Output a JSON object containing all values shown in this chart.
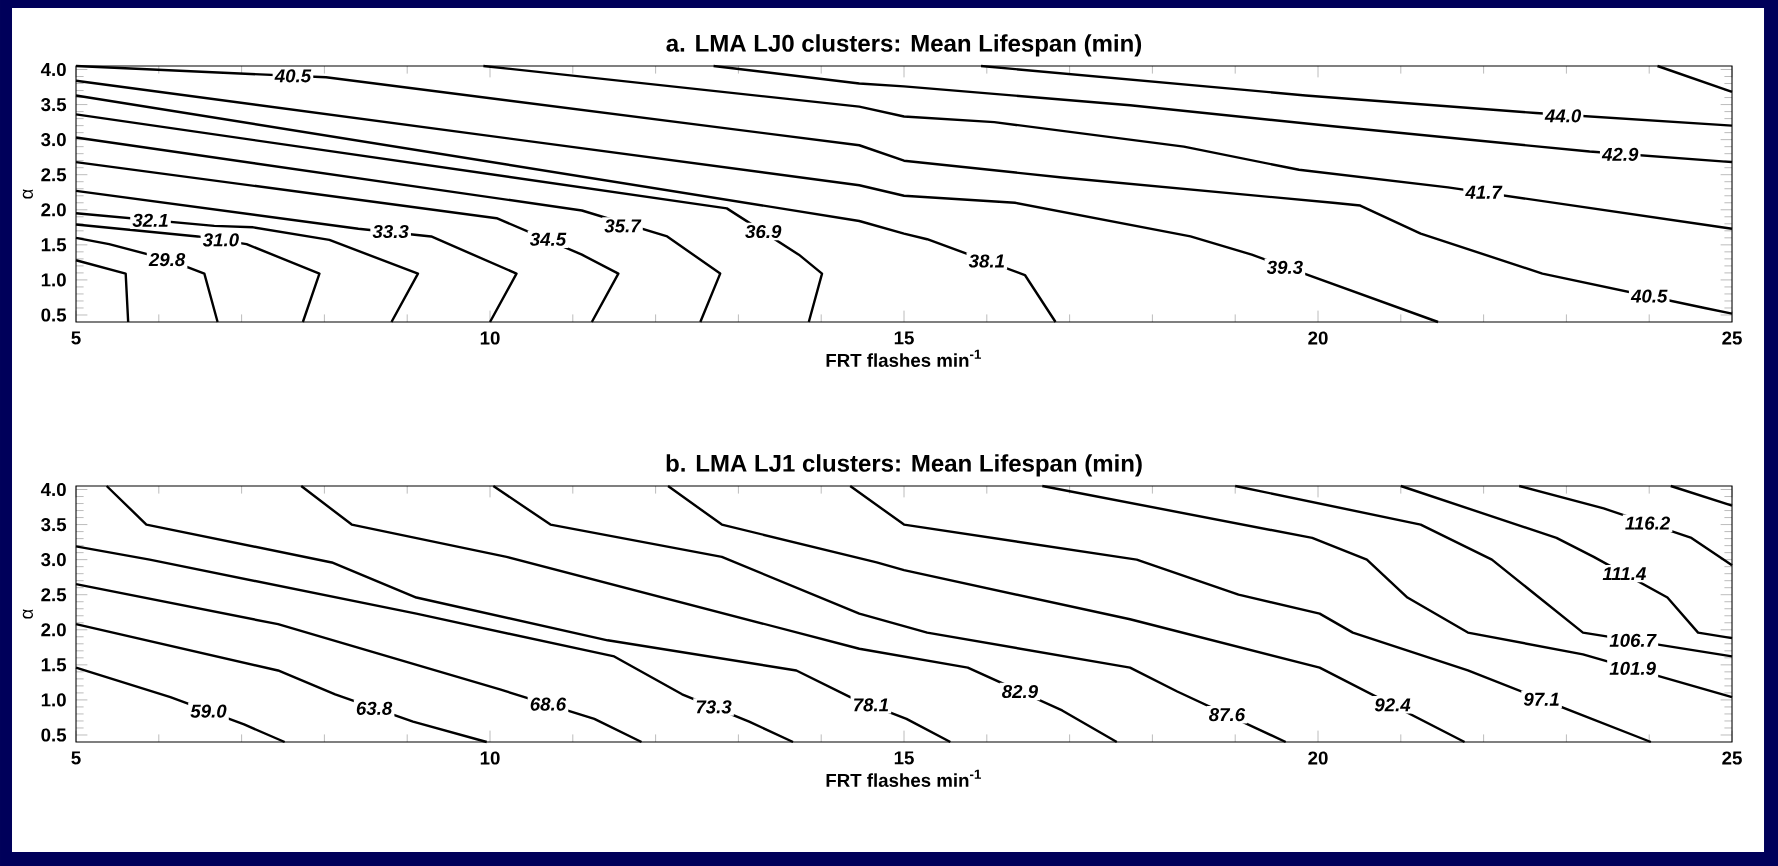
{
  "chart_data": [
    {
      "type": "line",
      "title": "a. LMA LJ0 clusters: Mean Lifespan (min)",
      "xlabel": "FRT flashes min$^{-1}$",
      "ylabel": "α",
      "xlim": [
        5,
        25
      ],
      "xticks": [
        5,
        10,
        15,
        20,
        25
      ],
      "ylim": [
        0.4,
        4.05
      ],
      "yticks": [
        {
          "value": 0.5,
          "label": "0.5"
        },
        {
          "value": 1.0,
          "label": "1.0"
        },
        {
          "value": 1.5,
          "label": "1.5"
        },
        {
          "value": 2.0,
          "label": "2.0"
        },
        {
          "value": 2.5,
          "label": "2.5"
        },
        {
          "value": 3.0,
          "label": "3.0"
        },
        {
          "value": 3.5,
          "label": "3.5"
        },
        {
          "value": 4.0,
          "label": "4.0"
        }
      ],
      "series": [
        {
          "color": "#000000",
          "x": [
            5,
            5.6,
            5.63
          ],
          "values": [
            1.28,
            1.09,
            0.4
          ]
        },
        {
          "color": "#000000",
          "x": [
            5,
            5.4,
            6.11,
            6.55,
            6.71
          ],
          "values": [
            1.6,
            1.51,
            1.29,
            1.09,
            0.4
          ]
        },
        {
          "color": "#000000",
          "x": [
            5,
            6.47,
            7.06,
            7.94,
            7.74
          ],
          "values": [
            1.79,
            1.62,
            1.51,
            1.09,
            0.4
          ]
        },
        {
          "color": "#000000",
          "x": [
            5,
            6.67,
            7.14,
            8.06,
            9.13,
            8.81
          ],
          "values": [
            1.95,
            1.77,
            1.75,
            1.57,
            1.09,
            0.4
          ]
        },
        {
          "color": "#000000",
          "x": [
            5,
            8.41,
            9.29,
            10.32,
            10.0
          ],
          "values": [
            2.27,
            1.73,
            1.62,
            1.09,
            0.4
          ]
        },
        {
          "color": "#000000",
          "x": [
            5,
            10.08,
            11.11,
            11.55,
            11.23
          ],
          "values": [
            2.68,
            1.88,
            1.36,
            1.09,
            0.4
          ]
        },
        {
          "color": "#000000",
          "x": [
            5,
            11.11,
            12.14,
            12.78,
            12.54
          ],
          "values": [
            3.03,
            1.99,
            1.62,
            1.09,
            0.4
          ]
        },
        {
          "color": "#000000",
          "x": [
            5,
            12.86,
            13.73,
            14.01,
            13.85
          ],
          "values": [
            3.36,
            2.02,
            1.36,
            1.09,
            0.4
          ]
        },
        {
          "color": "#000000",
          "x": [
            5,
            14.46,
            15,
            15.28,
            16.46,
            16.83
          ],
          "values": [
            3.63,
            1.84,
            1.66,
            1.58,
            1.07,
            0.4
          ]
        },
        {
          "color": "#000000",
          "x": [
            5,
            14.46,
            15,
            16.34,
            18.46,
            19.2,
            21.45
          ],
          "values": [
            3.84,
            2.35,
            2.2,
            2.1,
            1.62,
            1.36,
            0.4
          ]
        },
        {
          "color": "#000000",
          "x": [
            5,
            7.22,
            8.02,
            14.46,
            15,
            16.91,
            20.18,
            20.51,
            21.24,
            22.71,
            24.67,
            25
          ],
          "values": [
            4.05,
            3.93,
            3.89,
            2.92,
            2.7,
            2.46,
            2.1,
            2.06,
            1.66,
            1.09,
            0.6,
            0.52
          ]
        },
        {
          "color": "#000000",
          "x": [
            9.92,
            14.46,
            15,
            16.09,
            18.38,
            19.77,
            21.57,
            25
          ],
          "values": [
            4.05,
            3.47,
            3.33,
            3.25,
            2.9,
            2.57,
            2.32,
            1.73
          ]
        },
        {
          "color": "#000000",
          "x": [
            12.7,
            14.46,
            15,
            17.73,
            20.18,
            23.28,
            25
          ],
          "values": [
            4.05,
            3.8,
            3.76,
            3.49,
            3.19,
            2.83,
            2.68
          ]
        },
        {
          "color": "#000000",
          "x": [
            15.93,
            19.85,
            22.63,
            25
          ],
          "values": [
            4.05,
            3.63,
            3.38,
            3.2
          ]
        },
        {
          "color": "#000000",
          "x": [
            24.1,
            25
          ],
          "values": [
            4.05,
            3.68
          ]
        }
      ],
      "annotations": [
        {
          "text": "29.8",
          "x": 6.1,
          "y": 1.29
        },
        {
          "text": "31.0",
          "x": 6.75,
          "y": 1.57
        },
        {
          "text": "32.1",
          "x": 5.9,
          "y": 1.85
        },
        {
          "text": "33.3",
          "x": 8.8,
          "y": 1.69
        },
        {
          "text": "34.5",
          "x": 10.7,
          "y": 1.58
        },
        {
          "text": "35.7",
          "x": 11.6,
          "y": 1.77
        },
        {
          "text": "36.9",
          "x": 13.3,
          "y": 1.69
        },
        {
          "text": "38.1",
          "x": 16.0,
          "y": 1.27
        },
        {
          "text": "39.3",
          "x": 19.6,
          "y": 1.18
        },
        {
          "text": "40.5",
          "x": 7.62,
          "y": 3.91
        },
        {
          "text": "40.5",
          "x": 24.0,
          "y": 0.77
        },
        {
          "text": "41.7",
          "x": 22.0,
          "y": 2.25
        },
        {
          "text": "42.9",
          "x": 23.65,
          "y": 2.79
        },
        {
          "text": "44.0",
          "x": 22.96,
          "y": 3.34
        }
      ]
    },
    {
      "type": "line",
      "title": "b. LMA LJ1 clusters: Mean Lifespan (min)",
      "xlabel": "FRT flashes min$^{-1}$",
      "ylabel": "α",
      "xlim": [
        5,
        25
      ],
      "xticks": [
        5,
        10,
        15,
        20,
        25
      ],
      "ylim": [
        0.4,
        4.05
      ],
      "yticks": [
        {
          "value": 0.5,
          "label": "0.5"
        },
        {
          "value": 1.0,
          "label": "1.0"
        },
        {
          "value": 1.5,
          "label": "1.5"
        },
        {
          "value": 2.0,
          "label": "2.0"
        },
        {
          "value": 2.5,
          "label": "2.5"
        },
        {
          "value": 3.0,
          "label": "3.0"
        },
        {
          "value": 3.5,
          "label": "3.5"
        },
        {
          "value": 4.0,
          "label": "4.0"
        }
      ],
      "series": [
        {
          "color": "#000000",
          "x": [
            5,
            6.14,
            7.03,
            7.52
          ],
          "values": [
            1.46,
            1.04,
            0.65,
            0.4
          ]
        },
        {
          "color": "#000000",
          "x": [
            5,
            7.44,
            8.13,
            9.07,
            9.96
          ],
          "values": [
            2.08,
            1.42,
            1.08,
            0.69,
            0.4
          ]
        },
        {
          "color": "#000000",
          "x": [
            5,
            7.44,
            10.12,
            11.26,
            11.83
          ],
          "values": [
            2.65,
            2.08,
            1.15,
            0.73,
            0.4
          ]
        },
        {
          "color": "#000000",
          "x": [
            5,
            5.89,
            9.11,
            11.5,
            12.32,
            13.13,
            13.66
          ],
          "values": [
            3.19,
            3.0,
            2.23,
            1.62,
            1.08,
            0.69,
            0.4
          ]
        },
        {
          "color": "#000000",
          "x": [
            5.37,
            5.85,
            8.09,
            9.11,
            11.42,
            13.7,
            14.35,
            15.03,
            15.56
          ],
          "values": [
            4.05,
            3.5,
            2.96,
            2.46,
            1.85,
            1.42,
            1.04,
            0.73,
            0.4
          ]
        },
        {
          "color": "#000000",
          "x": [
            7.72,
            8.33,
            10.2,
            14.46,
            15.77,
            16.91,
            17.57
          ],
          "values": [
            4.05,
            3.5,
            3.04,
            1.73,
            1.46,
            0.85,
            0.4
          ]
        },
        {
          "color": "#000000",
          "x": [
            10.04,
            10.73,
            12.8,
            14.46,
            15.28,
            17.73,
            18.3,
            19.61
          ],
          "values": [
            4.05,
            3.5,
            3.04,
            2.23,
            1.96,
            1.46,
            1.12,
            0.4
          ]
        },
        {
          "color": "#000000",
          "x": [
            12.15,
            12.8,
            14.67,
            15,
            17.73,
            20.02,
            21.77
          ],
          "values": [
            4.05,
            3.5,
            2.96,
            2.85,
            2.15,
            1.46,
            0.4
          ]
        },
        {
          "color": "#000000",
          "x": [
            14.35,
            15,
            17.81,
            19.04,
            20.02,
            20.42,
            21.81,
            24.02
          ],
          "values": [
            4.05,
            3.5,
            3.0,
            2.5,
            2.23,
            1.96,
            1.42,
            0.4
          ]
        },
        {
          "color": "#000000",
          "x": [
            16.67,
            19.93,
            20.59,
            21.08,
            21.81,
            23.2,
            25
          ],
          "values": [
            4.05,
            3.31,
            3.0,
            2.46,
            1.96,
            1.65,
            1.04
          ]
        },
        {
          "color": "#000000",
          "x": [
            19.0,
            21.24,
            22.1,
            23.2,
            25
          ],
          "values": [
            4.05,
            3.5,
            3.0,
            1.96,
            1.62
          ]
        },
        {
          "color": "#000000",
          "x": [
            21.0,
            22.88,
            23.33,
            24.22,
            24.59,
            25
          ],
          "values": [
            4.05,
            3.31,
            3.04,
            2.46,
            1.96,
            1.88
          ]
        },
        {
          "color": "#000000",
          "x": [
            22.43,
            23.45,
            24.51,
            25
          ],
          "values": [
            4.05,
            3.73,
            3.31,
            2.92
          ]
        },
        {
          "color": "#000000",
          "x": [
            24.26,
            25
          ],
          "values": [
            4.05,
            3.77
          ]
        }
      ],
      "annotations": [
        {
          "text": "59.0",
          "x": 6.6,
          "y": 0.84
        },
        {
          "text": "63.8",
          "x": 8.6,
          "y": 0.88
        },
        {
          "text": "68.6",
          "x": 10.7,
          "y": 0.94
        },
        {
          "text": "73.3",
          "x": 12.7,
          "y": 0.9
        },
        {
          "text": "78.1",
          "x": 14.6,
          "y": 0.93
        },
        {
          "text": "82.9",
          "x": 16.4,
          "y": 1.12
        },
        {
          "text": "87.6",
          "x": 18.9,
          "y": 0.79
        },
        {
          "text": "92.4",
          "x": 20.9,
          "y": 0.93
        },
        {
          "text": "97.1",
          "x": 22.7,
          "y": 1.01
        },
        {
          "text": "101.9",
          "x": 23.8,
          "y": 1.45
        },
        {
          "text": "106.7",
          "x": 23.8,
          "y": 1.85
        },
        {
          "text": "111.4",
          "x": 23.7,
          "y": 2.8
        },
        {
          "text": "116.2",
          "x": 23.98,
          "y": 3.52
        }
      ]
    }
  ]
}
